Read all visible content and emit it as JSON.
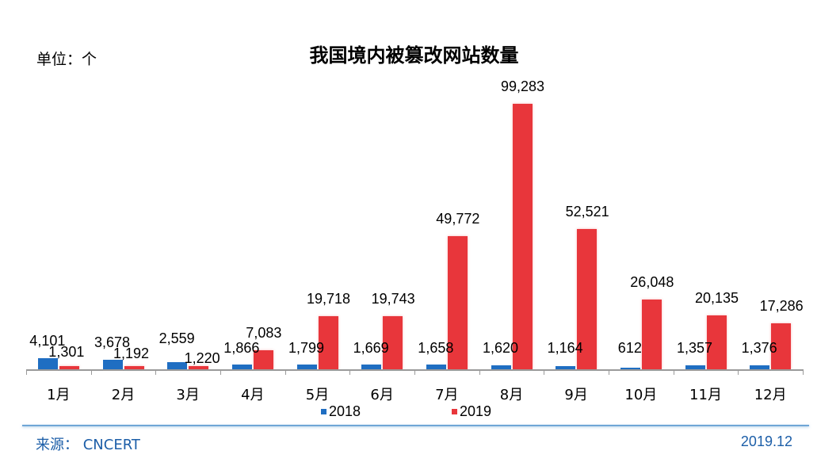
{
  "header": {
    "title": "我国境内被篡改网站数量",
    "unit": "单位：个"
  },
  "footer": {
    "source": "来源： CNCERT",
    "date": "2019.12"
  },
  "colors": {
    "s2018": "#1f6ec2",
    "s2019": "#e8363b",
    "footer_line": "#6fa6d6",
    "footer_text": "#1c5ea8"
  },
  "chart_data": {
    "type": "bar",
    "title": "我国境内被篡改网站数量",
    "ylabel": "单位：个",
    "xlabel": "",
    "categories": [
      "1月",
      "2月",
      "3月",
      "4月",
      "5月",
      "6月",
      "7月",
      "8月",
      "9月",
      "10月",
      "11月",
      "12月"
    ],
    "series": [
      {
        "name": "2018",
        "color": "#1f6ec2",
        "values": [
          4101,
          3678,
          2559,
          1866,
          1799,
          1669,
          1658,
          1620,
          1164,
          612,
          1357,
          1376
        ],
        "labels": [
          "4,101",
          "3,678",
          "2,559",
          "1,866",
          "1,799",
          "1,669",
          "1,658",
          "1,620",
          "1,164",
          "612",
          "1,357",
          "1,376"
        ]
      },
      {
        "name": "2019",
        "color": "#e8363b",
        "values": [
          1301,
          1192,
          1220,
          7083,
          19718,
          19743,
          49772,
          99283,
          52521,
          26048,
          20135,
          17286
        ],
        "labels": [
          "1,301",
          "1,192",
          "1,220",
          "7,083",
          "19,718",
          "19,743",
          "49,772",
          "99,283",
          "52,521",
          "26,048",
          "20,135",
          "17,286"
        ]
      }
    ],
    "ylim": [
      0,
      100000
    ],
    "grid": false,
    "legend_position": "bottom",
    "data_labels": true
  }
}
